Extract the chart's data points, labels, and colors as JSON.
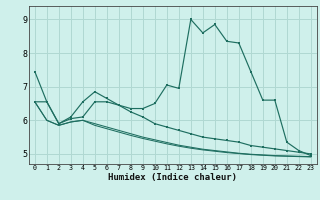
{
  "xlabel": "Humidex (Indice chaleur)",
  "bg_color": "#cff0eb",
  "grid_color": "#b0d8d2",
  "line_color": "#1e6e60",
  "xlim": [
    -0.5,
    23.5
  ],
  "ylim": [
    4.7,
    9.4
  ],
  "xticks": [
    0,
    1,
    2,
    3,
    4,
    5,
    6,
    7,
    8,
    9,
    10,
    11,
    12,
    13,
    14,
    15,
    16,
    17,
    18,
    19,
    20,
    21,
    22,
    23
  ],
  "yticks": [
    5,
    6,
    7,
    8,
    9
  ],
  "line1_x": [
    0,
    1,
    2,
    3,
    4,
    5,
    6,
    7,
    8,
    9,
    10,
    11,
    12,
    13,
    14,
    15,
    16,
    17,
    18,
    19,
    20,
    21,
    22,
    23
  ],
  "line1_y": [
    7.45,
    6.55,
    5.9,
    6.1,
    6.55,
    6.85,
    6.65,
    6.45,
    6.35,
    6.35,
    6.5,
    7.05,
    6.95,
    9.0,
    8.6,
    8.85,
    8.35,
    8.3,
    7.45,
    6.6,
    6.6,
    5.35,
    5.1,
    4.95
  ],
  "line2_x": [
    0,
    1,
    2,
    3,
    4,
    5,
    6,
    7,
    8,
    9,
    10,
    11,
    12,
    13,
    14,
    15,
    16,
    17,
    18,
    19,
    20,
    21,
    22,
    23
  ],
  "line2_y": [
    6.55,
    6.55,
    5.9,
    6.05,
    6.1,
    6.55,
    6.55,
    6.45,
    6.25,
    6.1,
    5.9,
    5.8,
    5.7,
    5.6,
    5.5,
    5.45,
    5.4,
    5.35,
    5.25,
    5.2,
    5.15,
    5.1,
    5.05,
    5.0
  ],
  "line3_x": [
    0,
    1,
    2,
    3,
    4,
    5,
    6,
    7,
    8,
    9,
    10,
    11,
    12,
    13,
    14,
    15,
    16,
    17,
    18,
    19,
    20,
    21,
    22,
    23
  ],
  "line3_y": [
    6.55,
    6.0,
    5.85,
    5.95,
    6.0,
    5.9,
    5.8,
    5.7,
    5.6,
    5.5,
    5.42,
    5.34,
    5.26,
    5.2,
    5.14,
    5.1,
    5.06,
    5.02,
    4.99,
    4.97,
    4.95,
    4.94,
    4.93,
    4.92
  ],
  "line4_x": [
    0,
    1,
    2,
    3,
    4,
    5,
    6,
    7,
    8,
    9,
    10,
    11,
    12,
    13,
    14,
    15,
    16,
    17,
    18,
    19,
    20,
    21,
    22,
    23
  ],
  "line4_y": [
    6.55,
    6.0,
    5.85,
    5.95,
    6.0,
    5.85,
    5.75,
    5.65,
    5.55,
    5.46,
    5.38,
    5.3,
    5.23,
    5.17,
    5.12,
    5.08,
    5.04,
    5.01,
    4.98,
    4.96,
    4.94,
    4.93,
    4.92,
    4.91
  ]
}
